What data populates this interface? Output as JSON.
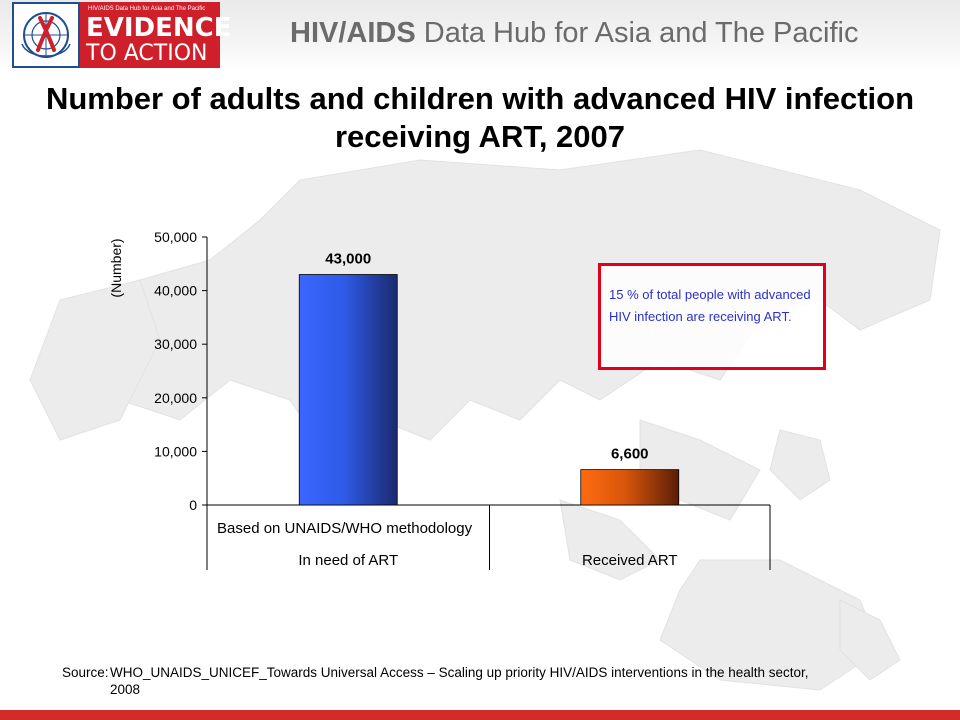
{
  "header": {
    "logo_small_text": "HIV/AIDS Data Hub for Asia and The Pacific",
    "logo_line1": "EVIDENCE",
    "logo_line2": "TO ACTION",
    "hub_title_bold": "HIV/AIDS",
    "hub_title_rest": " Data Hub for Asia and The Pacific"
  },
  "callout": {
    "text": "15 % of total people with advanced HIV infection are receiving ART."
  },
  "source": {
    "label": "Source:",
    "text": "WHO_UNAIDS_UNICEF_Towards Universal Access – Scaling up priority HIV/AIDS interventions in the health sector, 2008"
  },
  "colors": {
    "bar_need": "#2f5be8",
    "bar_received": "#e8600c",
    "callout_border": "#e0001b",
    "callout_text": "#2b31c8",
    "footer": "#d32a2a"
  },
  "chart_data": {
    "type": "bar",
    "title": "Number of adults and children with advanced HIV infection receiving ART, 2007",
    "ylabel": "(Number)",
    "ylim": [
      0,
      50000
    ],
    "yticks": [
      0,
      10000,
      20000,
      30000,
      40000,
      50000
    ],
    "ytick_labels": [
      "0",
      "10,000",
      "20,000",
      "30,000",
      "40,000",
      "50,000"
    ],
    "group_label": "Based on UNAIDS/WHO methodology",
    "categories": [
      "In need of ART",
      "Received ART"
    ],
    "values": [
      43000,
      6600
    ],
    "data_labels": [
      "43,000",
      "6,600"
    ],
    "grid": false,
    "legend": "none"
  }
}
